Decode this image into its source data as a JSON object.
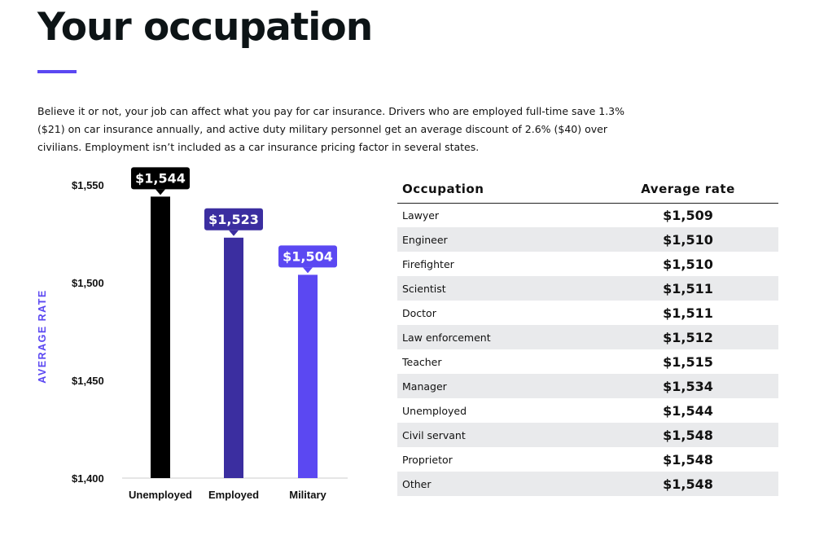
{
  "header": {
    "title": "Your occupation",
    "accent_color": "#5b48f2"
  },
  "intro": {
    "text": "Believe it or not, your job can affect what you pay for car insurance. Drivers who are employed full-time save 1.3% ($21) on car insurance annually, and active duty military personnel get an average discount of 2.6% ($40) over civilians. Employment isn’t included as a car insurance pricing factor in several states."
  },
  "chart_data": {
    "type": "bar",
    "categories": [
      "Unemployed",
      "Employed",
      "Military"
    ],
    "values": [
      1544,
      1523,
      1504
    ],
    "value_labels": [
      "$1,544",
      "$1,523",
      "$1,504"
    ],
    "colors": [
      "#000000",
      "#3b2ea0",
      "#5b48f2"
    ],
    "ylabel": "AVERAGE RATE",
    "ylim": [
      1400,
      1550
    ],
    "yticks": [
      1400,
      1450,
      1500,
      1550
    ],
    "ytick_labels": [
      "$1,400",
      "$1,450",
      "$1,500",
      "$1,550"
    ],
    "grid": false,
    "legend": "none"
  },
  "table": {
    "headers": [
      "Occupation",
      "Average rate"
    ],
    "rows": [
      {
        "occupation": "Lawyer",
        "rate": "$1,509"
      },
      {
        "occupation": "Engineer",
        "rate": "$1,510"
      },
      {
        "occupation": "Firefighter",
        "rate": "$1,510"
      },
      {
        "occupation": "Scientist",
        "rate": "$1,511"
      },
      {
        "occupation": "Doctor",
        "rate": "$1,511"
      },
      {
        "occupation": "Law enforcement",
        "rate": "$1,512"
      },
      {
        "occupation": "Teacher",
        "rate": "$1,515"
      },
      {
        "occupation": "Manager",
        "rate": "$1,534"
      },
      {
        "occupation": "Unemployed",
        "rate": "$1,544"
      },
      {
        "occupation": "Civil servant",
        "rate": "$1,548"
      },
      {
        "occupation": "Proprietor",
        "rate": "$1,548"
      },
      {
        "occupation": "Other",
        "rate": "$1,548"
      }
    ],
    "stripe_color": "#e9eaec"
  }
}
